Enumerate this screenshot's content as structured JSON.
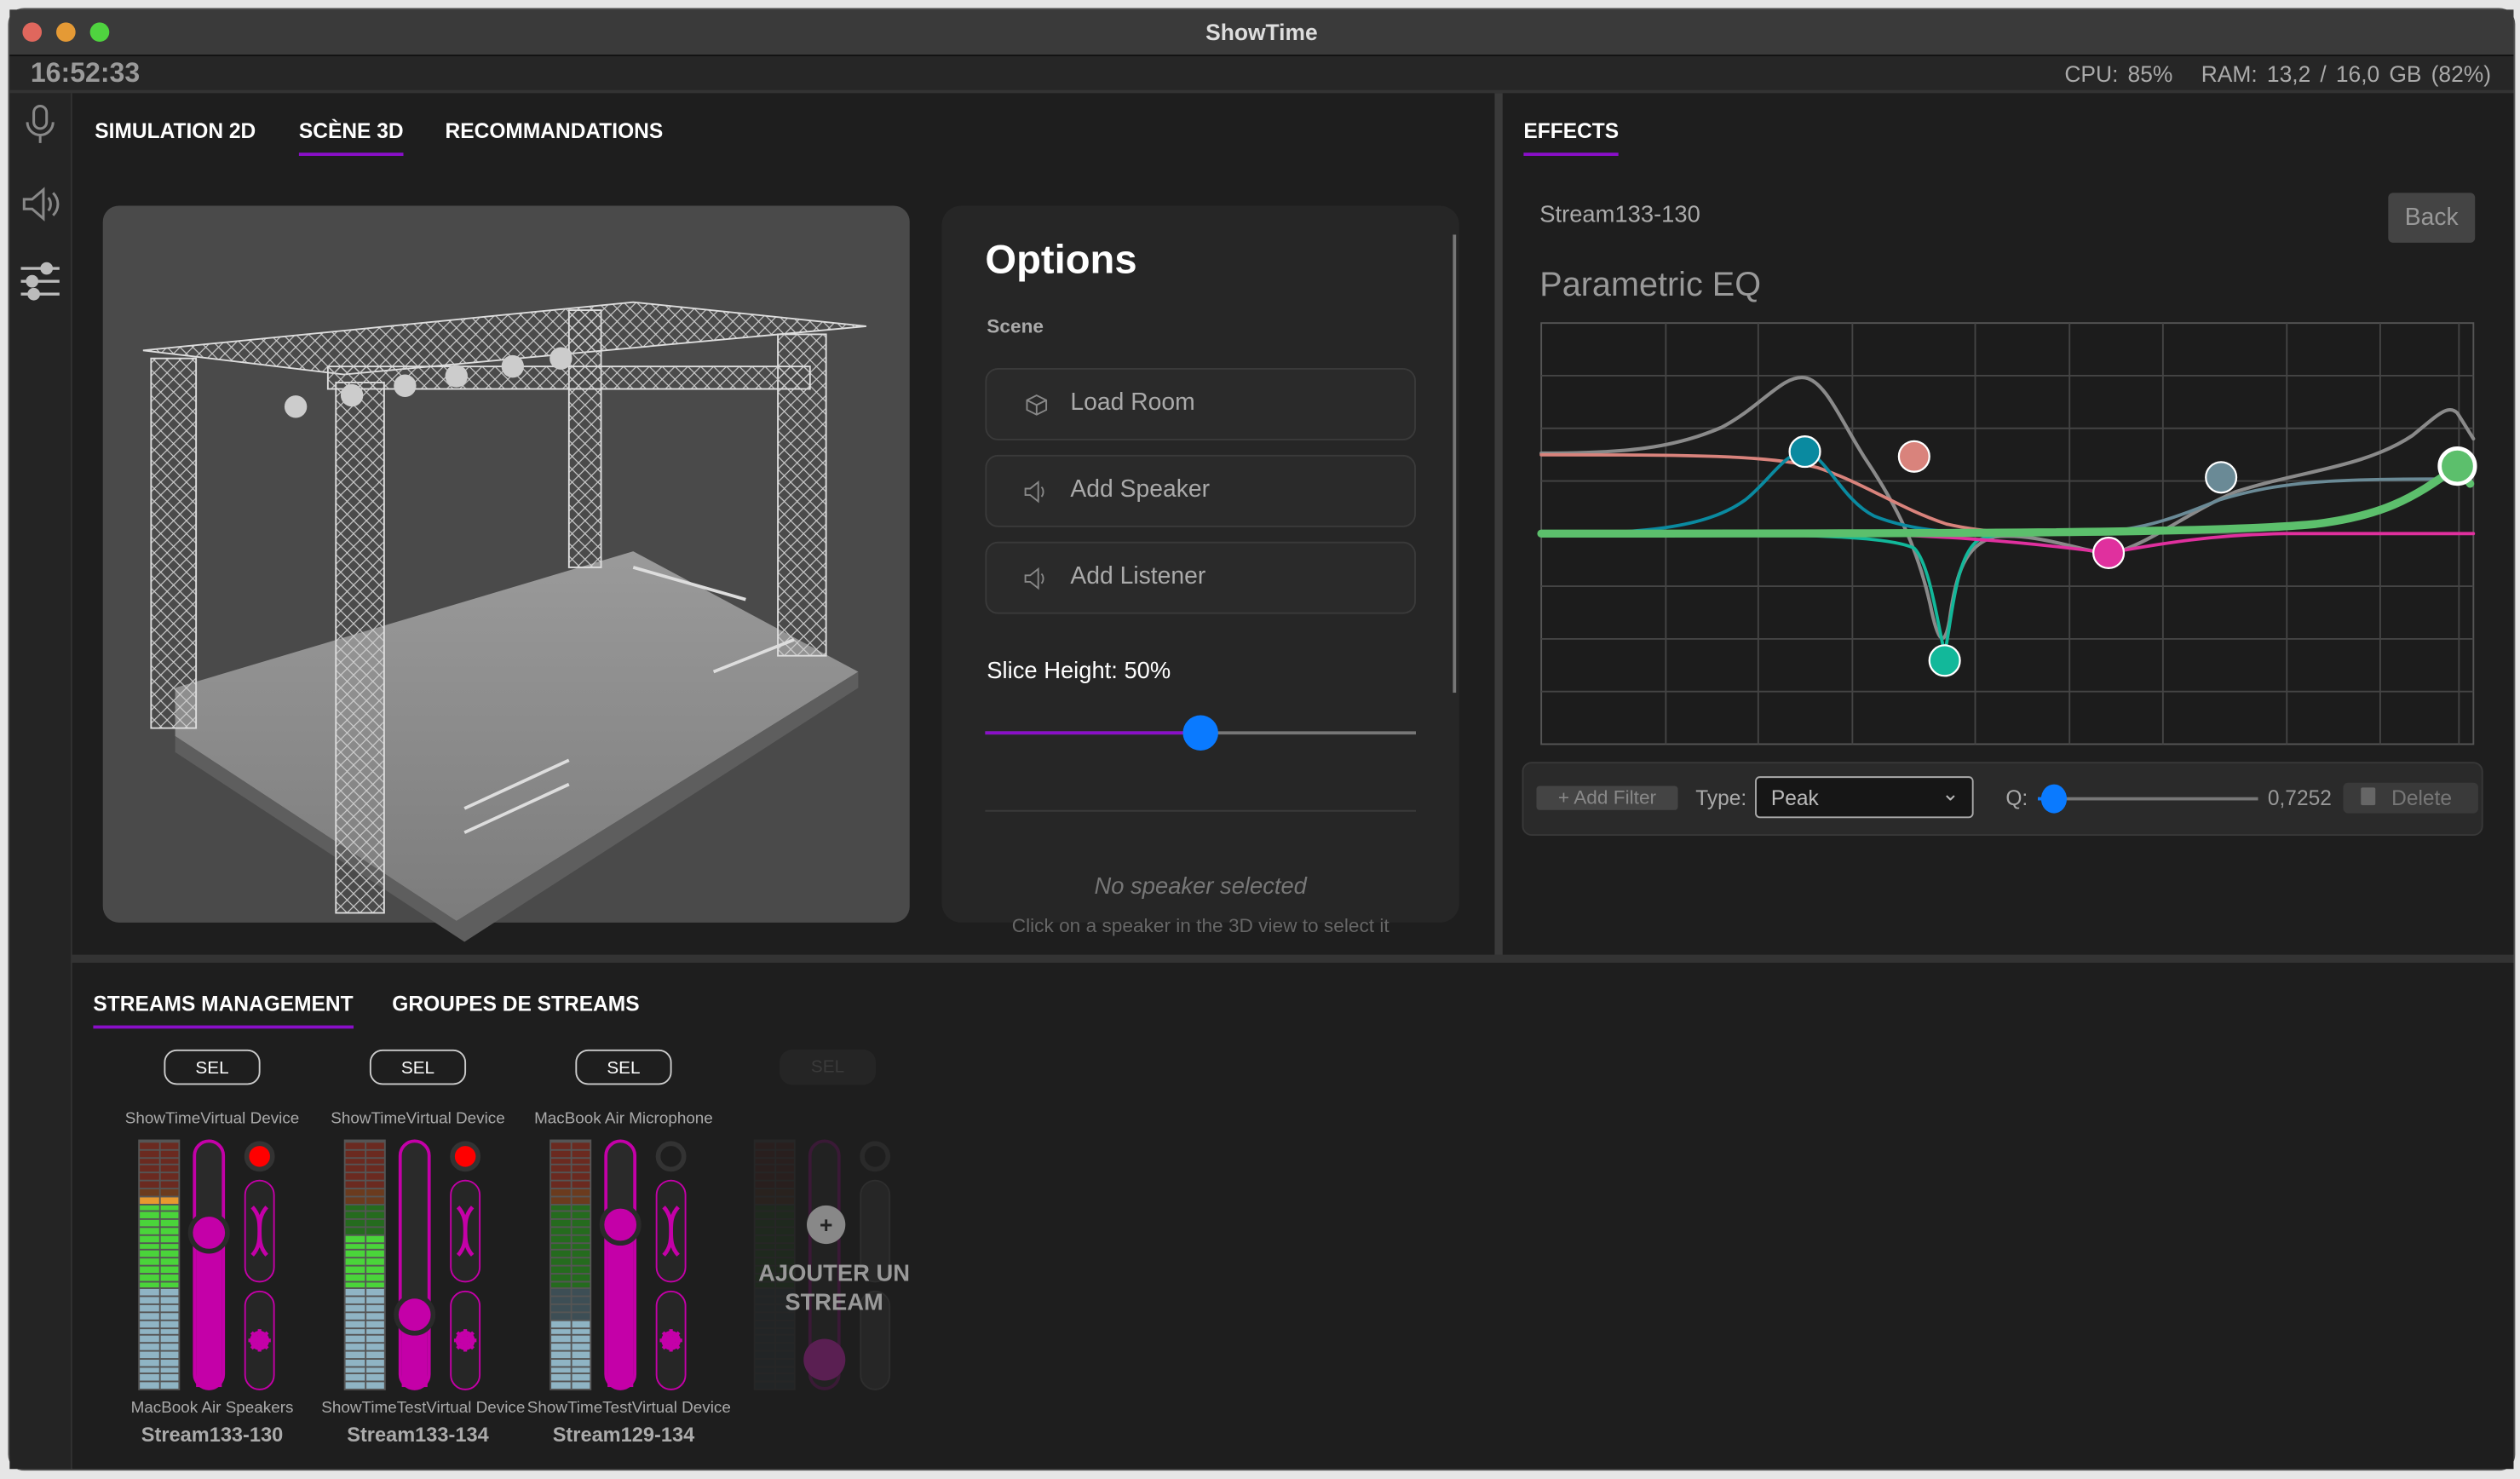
{
  "window": {
    "title": "ShowTime"
  },
  "status": {
    "clock": "16:52:33",
    "cpu": "CPU: 85%",
    "ram": "RAM: 13,2 / 16,0 GB (82%)"
  },
  "sidebar": {
    "items": [
      {
        "icon": "microphone-icon"
      },
      {
        "icon": "speaker-icon"
      },
      {
        "icon": "sliders-icon"
      }
    ]
  },
  "top_tabs": [
    {
      "label": "SIMULATION 2D"
    },
    {
      "label": "SCÈNE 3D",
      "active": true
    },
    {
      "label": "RECOMMANDATIONS"
    }
  ],
  "options": {
    "title": "Options",
    "section": "Scene",
    "buttons": [
      {
        "label": "Load Room",
        "icon": "cube-icon"
      },
      {
        "label": "Add Speaker",
        "icon": "speaker-icon"
      },
      {
        "label": "Add Listener",
        "icon": "speaker-icon"
      }
    ],
    "slice_label": "Slice Height: 50%",
    "slice_value": 0.5,
    "empty_title": "No speaker selected",
    "empty_hint": "Click on a speaker in the 3D view to select it"
  },
  "effects": {
    "tab": "EFFECTS",
    "stream": "Stream133-130",
    "back": "Back",
    "eq_title": "Parametric EQ",
    "filter_colors": [
      "#0a8aa0",
      "#d9837c",
      "#12b89a",
      "#e0309e",
      "#6a8a96",
      "#5cbf6c"
    ],
    "toolbar": {
      "add_filter": "+ Add Filter",
      "type_label": "Type:",
      "type_value": "Peak",
      "q_label": "Q:",
      "q_value": "0,7252",
      "delete": "Delete"
    }
  },
  "bottom_tabs": [
    {
      "label": "STREAMS MANAGEMENT",
      "active": true
    },
    {
      "label": "GROUPES DE STREAMS"
    }
  ],
  "strips": [
    {
      "sel": "SEL",
      "top_device": "ShowTimeVirtual Device",
      "bottom_device": "MacBook Air Speakers",
      "name": "Stream133-130",
      "meter": 0.79,
      "fader": 0.63,
      "record": true
    },
    {
      "sel": "SEL",
      "top_device": "ShowTimeVirtual Device",
      "bottom_device": "ShowTimeTestVirtual Device",
      "name": "Stream133-134",
      "meter": 0.62,
      "fader": 0.3,
      "record": true
    },
    {
      "sel": "SEL",
      "top_device": "MacBook Air Microphone",
      "bottom_device": "ShowTimeTestVirtual Device",
      "name": "Stream129-134",
      "meter": 0.29,
      "fader": 0.66,
      "record": false
    }
  ],
  "add_stream": {
    "sel": "SEL",
    "label": "AJOUTER UN STREAM"
  },
  "colors": {
    "accent": "#8a0fc9",
    "fader": "#c400a8",
    "slider_thumb": "#0a7aff",
    "record": "#ff0000"
  }
}
